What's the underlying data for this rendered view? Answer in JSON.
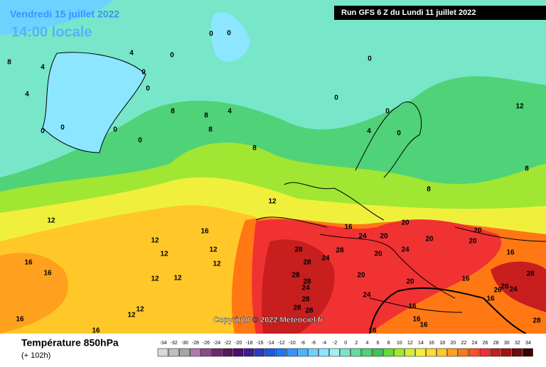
{
  "header": {
    "date": "Vendredi 15 juillet 2022",
    "time": "14:00 locale",
    "run": "Run GFS 6 Z du Lundi 11 juillet 2022"
  },
  "footer": {
    "title": "Température 850hPa",
    "lead": "(+ 102h)",
    "copyright": "Copyright © 2022 Meteociel.fr"
  },
  "legend": {
    "ticks": [
      -34,
      -32,
      -30,
      -28,
      -26,
      -24,
      -22,
      -20,
      -18,
      -16,
      -14,
      -12,
      -10,
      -8,
      -6,
      -4,
      -2,
      0,
      2,
      4,
      6,
      8,
      10,
      12,
      14,
      16,
      18,
      20,
      22,
      24,
      26,
      28,
      30,
      32,
      34
    ],
    "colors": [
      "#d9d9d9",
      "#bfbfbf",
      "#a6a6a6",
      "#b07ab0",
      "#8c4b8c",
      "#6e2a6e",
      "#5a1a5a",
      "#4b0f6e",
      "#3c1e96",
      "#2d3cbe",
      "#1e5adc",
      "#1e78f0",
      "#3296ff",
      "#50b4ff",
      "#6ed2ff",
      "#8ce6ff",
      "#a0f0f0",
      "#78e6c8",
      "#64dca0",
      "#50d278",
      "#3cc850",
      "#64dc3c",
      "#a0e632",
      "#d2f032",
      "#f0f03c",
      "#ffdc32",
      "#ffc828",
      "#ffa01e",
      "#ff7814",
      "#ff5028",
      "#f03232",
      "#c81e1e",
      "#a01414",
      "#780a0a",
      "#3c0000"
    ]
  },
  "contour_labels": [
    8,
    4,
    4,
    4,
    0,
    0,
    0,
    0,
    0,
    0,
    0,
    0,
    0,
    8,
    8,
    4,
    8,
    8,
    0,
    0,
    0,
    0,
    4,
    8,
    12,
    8,
    12,
    12,
    16,
    12,
    12,
    12,
    12,
    12,
    12,
    16,
    16,
    16,
    12,
    12,
    16,
    16,
    24,
    20,
    20,
    28,
    28,
    24,
    28,
    20,
    24,
    28,
    28,
    24,
    28,
    28,
    28,
    20,
    24,
    20,
    16,
    16,
    16,
    16,
    20,
    20,
    20,
    16,
    16,
    16,
    26,
    20,
    24,
    28,
    28
  ]
}
